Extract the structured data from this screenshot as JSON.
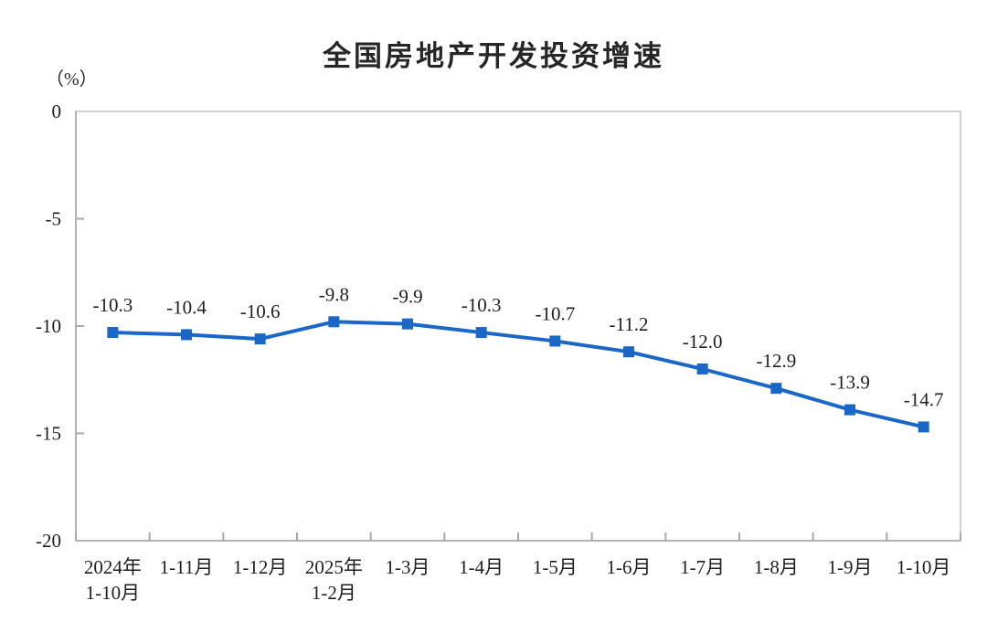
{
  "page": {
    "background_color": "#ffffff"
  },
  "chart_data": {
    "type": "line",
    "title": "全国房地产开发投资增速",
    "unit_label": "（%）",
    "categories": [
      [
        "2024年",
        "1-10月"
      ],
      [
        "1-11月"
      ],
      [
        "1-12月"
      ],
      [
        "2025年",
        "1-2月"
      ],
      [
        "1-3月"
      ],
      [
        "1-4月"
      ],
      [
        "1-5月"
      ],
      [
        "1-6月"
      ],
      [
        "1-7月"
      ],
      [
        "1-8月"
      ],
      [
        "1-9月"
      ],
      [
        "1-10月"
      ]
    ],
    "values": [
      -10.3,
      -10.4,
      -10.6,
      -9.8,
      -9.9,
      -10.3,
      -10.7,
      -11.2,
      -12.0,
      -12.9,
      -13.9,
      -14.7
    ],
    "data_labels": [
      "-10.3",
      "-10.4",
      "-10.6",
      "-9.8",
      "-9.9",
      "-10.3",
      "-10.7",
      "-11.2",
      "-12.0",
      "-12.9",
      "-13.9",
      "-14.7"
    ],
    "y_axis": {
      "tick_values": [
        0,
        -5,
        -10,
        -15,
        -20
      ],
      "tick_labels": [
        "0",
        "-5",
        "-10",
        "-15",
        "-20"
      ],
      "min": -20,
      "max": 0
    },
    "ylim": [
      -20,
      0
    ],
    "xlabel": "",
    "ylabel": "（%）",
    "grid": false,
    "legend": null,
    "marker": "square",
    "colors": {
      "line": "#1b67c8",
      "marker": "#1b67c8",
      "text": "#1f1f1f",
      "plot_border": "#d2d2d2",
      "axis": "#b3b3b3",
      "tick": "#a8a8a8"
    }
  }
}
